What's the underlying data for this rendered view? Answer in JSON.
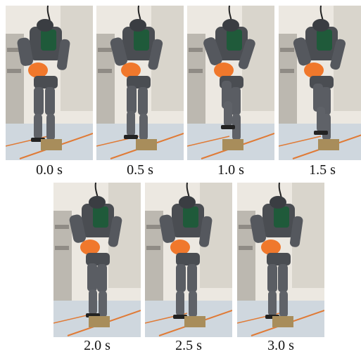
{
  "figure": {
    "frames": [
      {
        "label": "0.0 s"
      },
      {
        "label": "0.5 s"
      },
      {
        "label": "1.0 s"
      },
      {
        "label": "1.5 s"
      },
      {
        "label": "2.0 s"
      },
      {
        "label": "2.5 s"
      },
      {
        "label": "3.0 s"
      }
    ]
  }
}
